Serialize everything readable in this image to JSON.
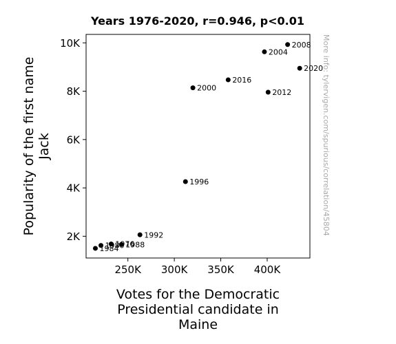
{
  "chart_data": {
    "type": "scatter",
    "title": "Years 1976-2020, r=0.946, p<0.01",
    "xlabel_lines": [
      "Votes for the Democratic",
      "Presidential candidate in",
      "Maine"
    ],
    "ylabel_lines": [
      "Popularity of the first name",
      "Jack"
    ],
    "watermark": "More info: tylervigen.com/spurious/correlation/45804",
    "xlim": [
      205000,
      446000
    ],
    "ylim": [
      1100,
      10350
    ],
    "xticks": [
      {
        "value": 250000,
        "label": "250K"
      },
      {
        "value": 300000,
        "label": "300K"
      },
      {
        "value": 350000,
        "label": "350K"
      },
      {
        "value": 400000,
        "label": "400K"
      }
    ],
    "yticks": [
      {
        "value": 2000,
        "label": "2K"
      },
      {
        "value": 4000,
        "label": "4K"
      },
      {
        "value": 6000,
        "label": "6K"
      },
      {
        "value": 8000,
        "label": "8K"
      },
      {
        "value": 10000,
        "label": "10K"
      }
    ],
    "points": [
      {
        "label": "1976",
        "x": 232000,
        "y": 1680
      },
      {
        "label": "1980",
        "x": 221000,
        "y": 1620
      },
      {
        "label": "1984",
        "x": 215000,
        "y": 1500
      },
      {
        "label": "1988",
        "x": 243000,
        "y": 1660
      },
      {
        "label": "1992",
        "x": 263000,
        "y": 2060
      },
      {
        "label": "1996",
        "x": 312000,
        "y": 4260
      },
      {
        "label": "2000",
        "x": 320000,
        "y": 8140
      },
      {
        "label": "2004",
        "x": 397000,
        "y": 9630
      },
      {
        "label": "2008",
        "x": 422000,
        "y": 9930
      },
      {
        "label": "2012",
        "x": 401000,
        "y": 7960
      },
      {
        "label": "2016",
        "x": 358000,
        "y": 8470
      },
      {
        "label": "2020",
        "x": 435000,
        "y": 8950
      }
    ],
    "grid": false,
    "marker_color": "#000000"
  }
}
